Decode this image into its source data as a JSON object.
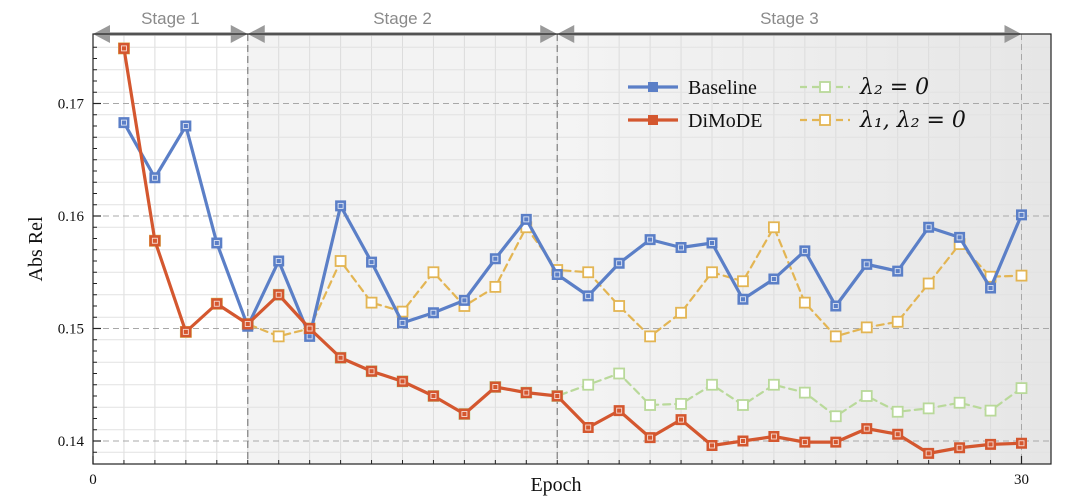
{
  "chart_data": {
    "type": "line",
    "xlabel": "Epoch",
    "ylabel": "Abs Rel",
    "xlim": [
      0,
      30.8
    ],
    "ylim": [
      0.1388,
      0.1755
    ],
    "x_ticks": [
      0,
      30
    ],
    "x_tick_labels": [
      "0",
      "30"
    ],
    "y_ticks": [
      0.14,
      0.15,
      0.16,
      0.17
    ],
    "y_tick_labels": [
      "0.14",
      "0.15",
      "0.16",
      "0.17"
    ],
    "grid": true,
    "legend_position": "top-right",
    "stages": [
      {
        "label": "Stage 1",
        "x_start": 0,
        "x_end": 5
      },
      {
        "label": "Stage 2",
        "x_start": 5,
        "x_end": 15
      },
      {
        "label": "Stage 3",
        "x_start": 15,
        "x_end": 30
      }
    ],
    "x": [
      1,
      2,
      3,
      4,
      5,
      6,
      7,
      8,
      9,
      10,
      11,
      12,
      13,
      14,
      15,
      16,
      17,
      18,
      19,
      20,
      21,
      22,
      23,
      24,
      25,
      26,
      27,
      28,
      29,
      30
    ],
    "series": [
      {
        "name": "Baseline",
        "color": "#5b7fc7",
        "style": "solid",
        "values": [
          0.1683,
          0.1634,
          0.168,
          0.1576,
          0.1502,
          0.156,
          0.1493,
          0.1609,
          0.1559,
          0.1505,
          0.1514,
          0.1525,
          0.1562,
          0.1597,
          0.1548,
          0.1529,
          0.1558,
          0.1579,
          0.1572,
          0.1576,
          0.1526,
          0.1544,
          0.1569,
          0.152,
          0.1557,
          0.1551,
          0.159,
          0.1581,
          0.1536,
          0.1601
        ]
      },
      {
        "name": "DiMoDE",
        "color": "#d4572f",
        "style": "solid",
        "values": [
          0.1749,
          0.1578,
          0.1497,
          0.1522,
          0.1504,
          0.153,
          0.15,
          0.1474,
          0.1462,
          0.1453,
          0.144,
          0.1424,
          0.1448,
          0.1443,
          0.144,
          0.1412,
          0.1427,
          0.1403,
          0.1419,
          0.1396,
          0.14,
          0.1404,
          0.1399,
          0.1399,
          0.1411,
          0.1406,
          0.1389,
          0.1394,
          0.1397,
          0.1398
        ]
      },
      {
        "name": "λ2 = 0",
        "legend_label": "λ₂ = 0",
        "color": "#b9d99a",
        "style": "dashed",
        "values": [
          0.1749,
          0.1578,
          0.1497,
          0.1522,
          0.1504,
          0.153,
          0.15,
          0.1474,
          0.1462,
          0.1453,
          0.144,
          0.1424,
          0.1448,
          0.1443,
          0.144,
          0.145,
          0.146,
          0.1432,
          0.1433,
          0.145,
          0.1432,
          0.145,
          0.1443,
          0.1422,
          0.144,
          0.1426,
          0.1429,
          0.1434,
          0.1427,
          0.1447
        ]
      },
      {
        "name": "λ1, λ2 = 0",
        "legend_label": "λ₁, λ₂ = 0",
        "color": "#e3b553",
        "style": "dashed",
        "values": [
          0.1749,
          0.1578,
          0.1497,
          0.1522,
          0.1504,
          0.1493,
          0.15,
          0.156,
          0.1523,
          0.1515,
          0.155,
          0.152,
          0.1537,
          0.159,
          0.1552,
          0.155,
          0.152,
          0.1493,
          0.1514,
          0.155,
          0.1542,
          0.159,
          0.1523,
          0.1493,
          0.1501,
          0.1506,
          0.154,
          0.1575,
          0.1546,
          0.1547
        ]
      }
    ]
  }
}
